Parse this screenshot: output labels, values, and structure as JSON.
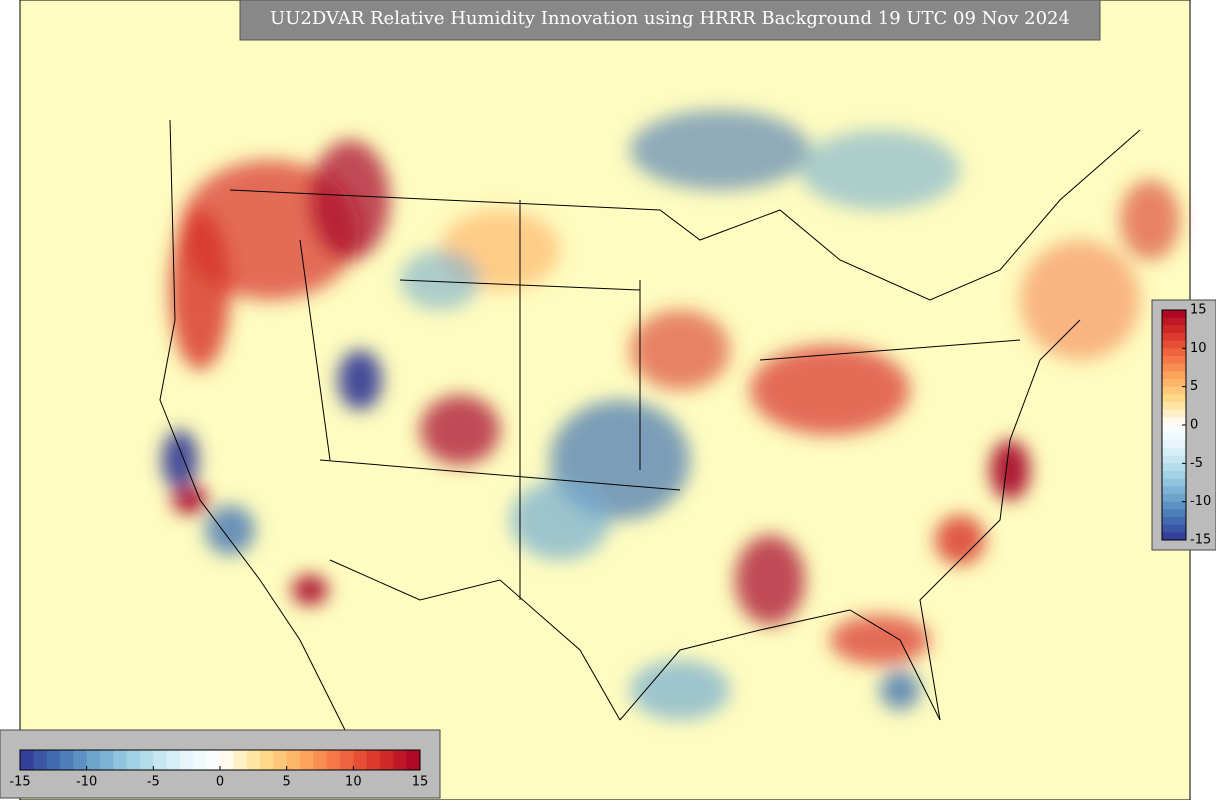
{
  "title": "UU2DVAR Relative Humidity Innovation using HRRR Background 19 UTC 09 Nov 2024",
  "colorbar_bottom": {
    "ticks": [
      -15,
      -10,
      -5,
      0,
      5,
      10,
      15
    ]
  },
  "colorbar_right": {
    "ticks": [
      15,
      10,
      5,
      0,
      -5,
      -10,
      -15
    ]
  }
}
